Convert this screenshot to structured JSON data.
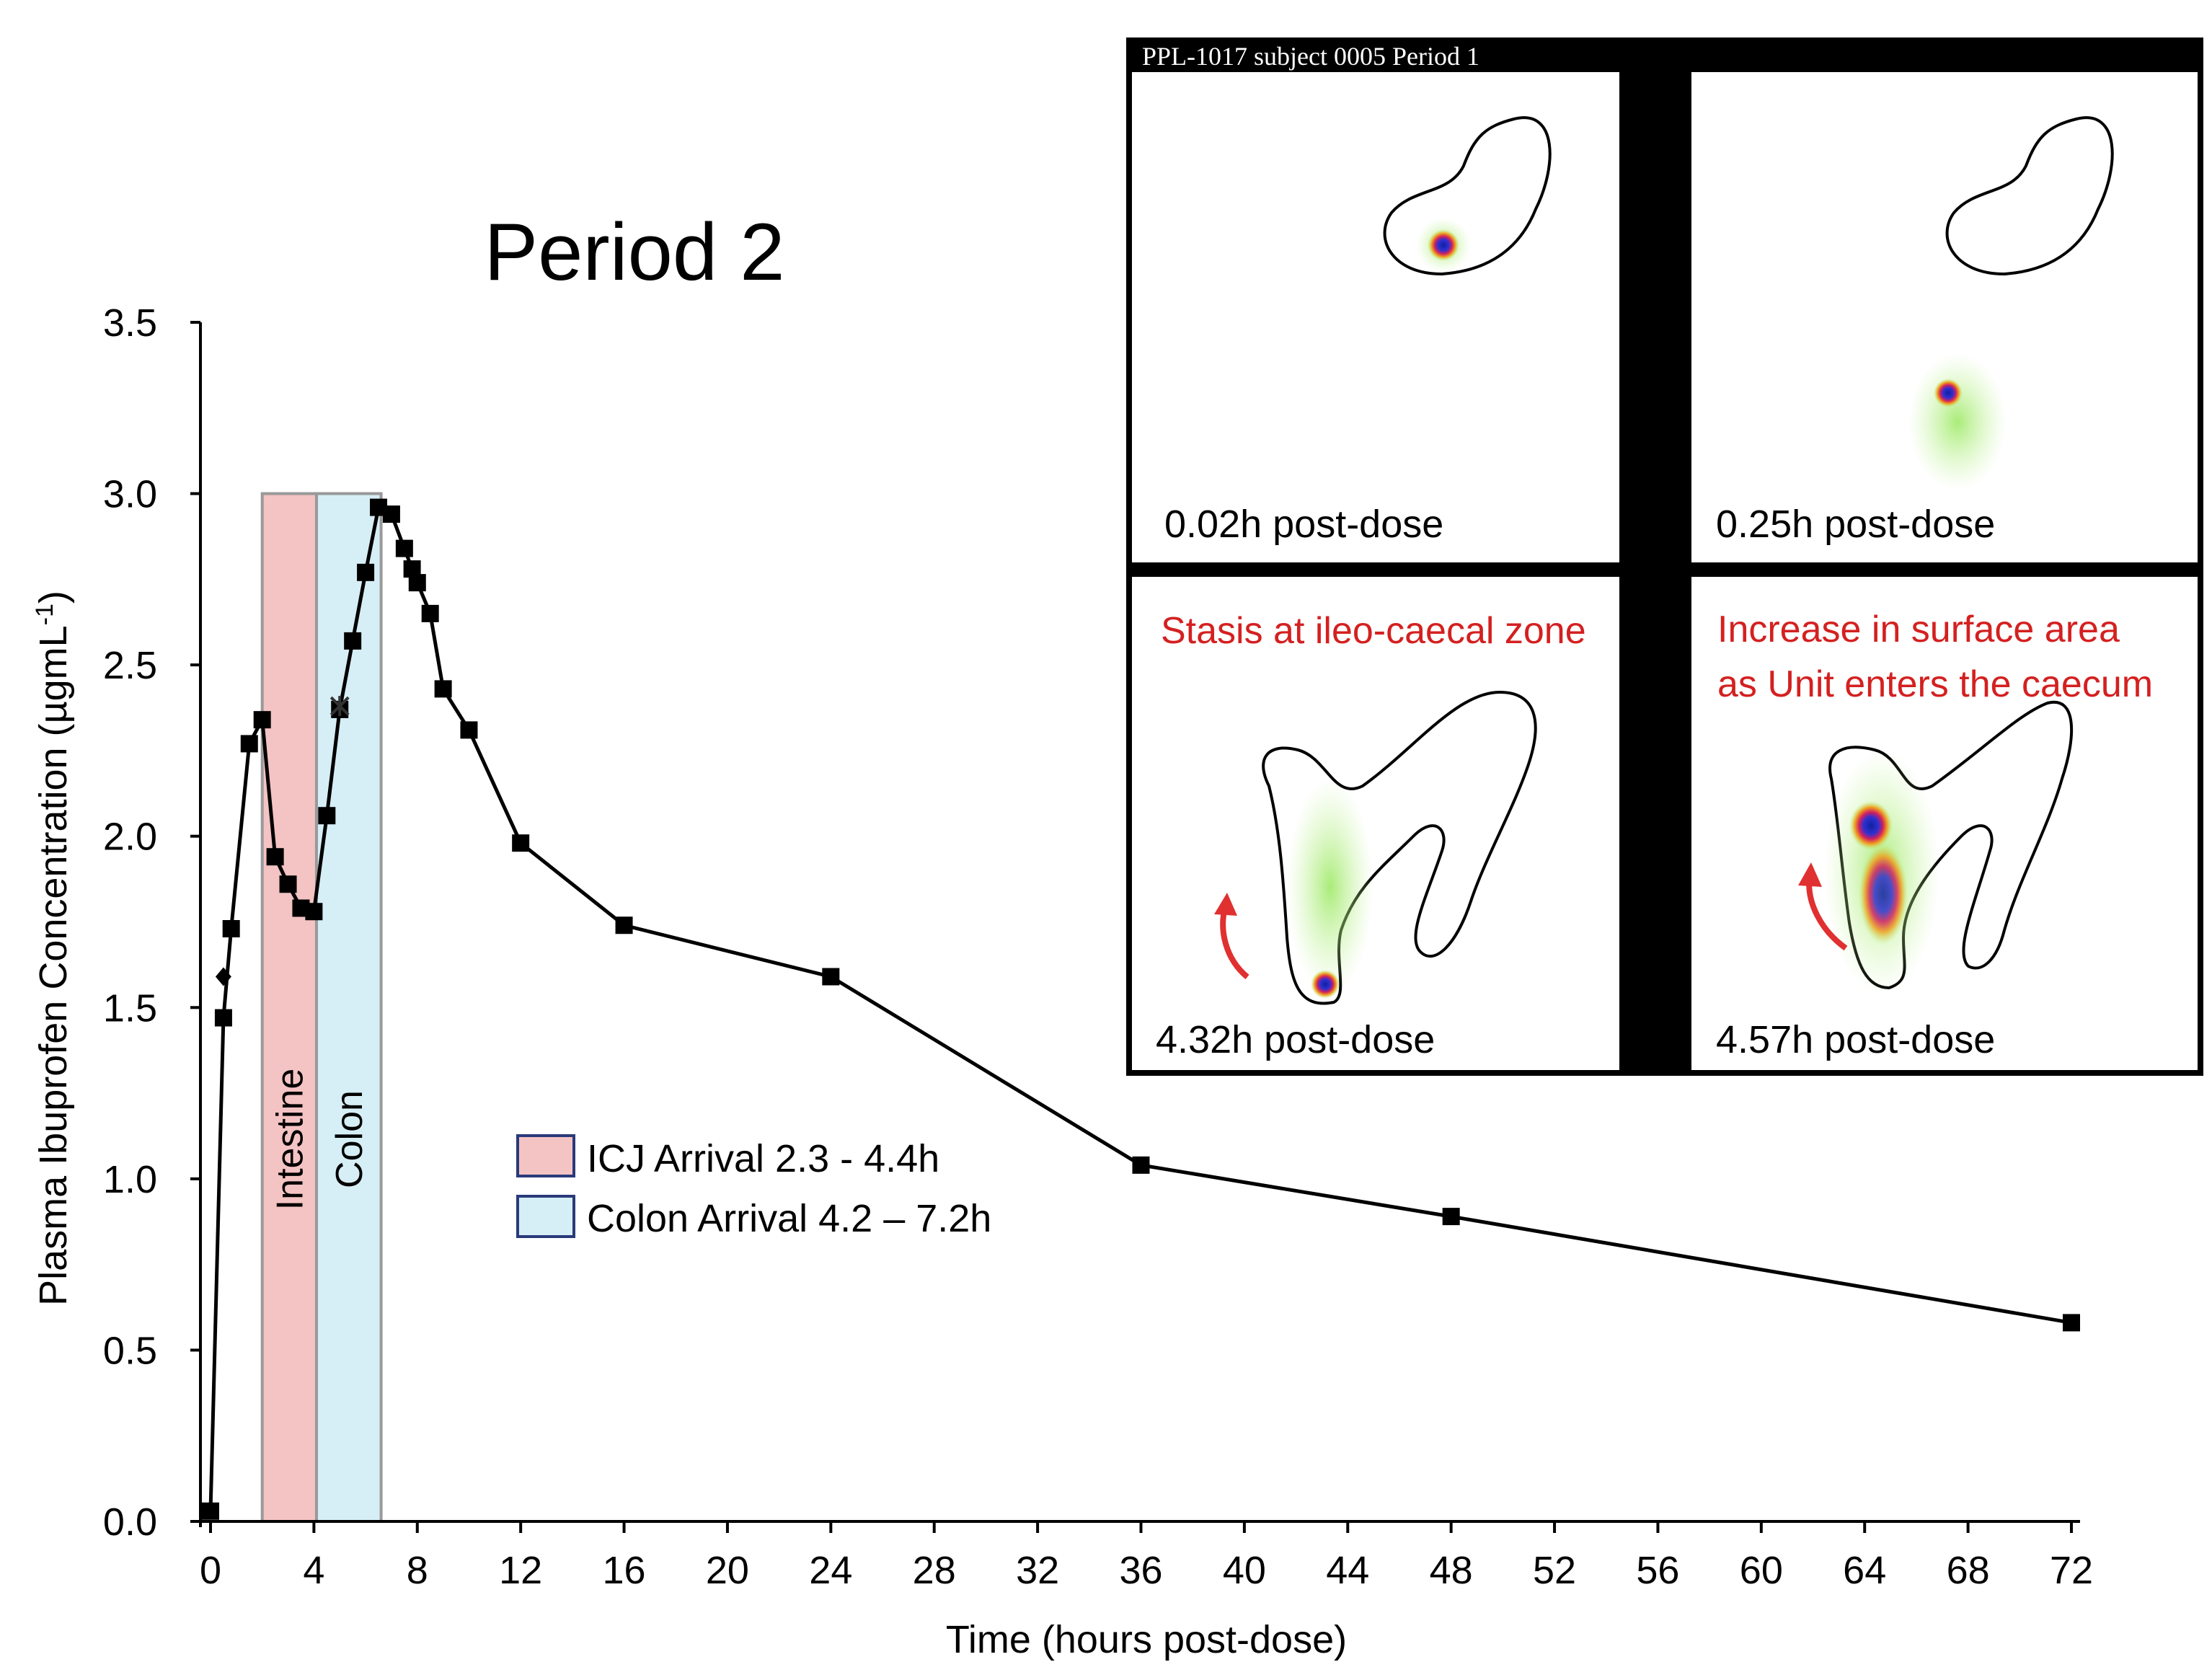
{
  "chart_data": {
    "type": "line",
    "title": "Period 2",
    "xlabel": "Time (hours post-dose)",
    "ylabel_main": "Plasma Ibuprofen Concentration (µgmL",
    "ylabel_sup": "-1",
    "ylabel_close": ")",
    "xlim": [
      -0.5,
      72.5
    ],
    "ylim": [
      0,
      3.5
    ],
    "x_ticks": [
      0,
      4,
      8,
      12,
      16,
      20,
      24,
      28,
      32,
      36,
      40,
      44,
      48,
      52,
      56,
      60,
      64,
      68,
      72
    ],
    "x_tick_labels": [
      "0",
      "4",
      "8",
      "12",
      "16",
      "20",
      "24",
      "28",
      "32",
      "36",
      "40",
      "44",
      "48",
      "52",
      "56",
      "60",
      "64",
      "68",
      "72"
    ],
    "y_ticks": [
      0,
      0.5,
      1.0,
      1.5,
      2.0,
      2.5,
      3.0,
      3.5
    ],
    "y_tick_labels": [
      "0.0",
      "0.5",
      "1.0",
      "1.5",
      "2.0",
      "2.5",
      "3.0",
      "3.5"
    ],
    "series": [
      {
        "name": "Plasma ibuprofen concentration",
        "color": "#000000",
        "marker": "square",
        "x": [
          0,
          0.5,
          0.8,
          1.5,
          2.0,
          2.5,
          3.0,
          3.5,
          4.0,
          4.5,
          5.0,
          5.5,
          6.0,
          6.5,
          7.0,
          7.5,
          7.8,
          8.0,
          8.5,
          9.0,
          10.0,
          12.0,
          16.0,
          24.0,
          36.0,
          48.0,
          72.0
        ],
        "y": [
          0.03,
          1.47,
          1.73,
          2.27,
          2.34,
          1.94,
          1.86,
          1.79,
          1.78,
          2.06,
          2.37,
          2.57,
          2.77,
          2.96,
          2.94,
          2.84,
          2.78,
          2.74,
          2.65,
          2.43,
          2.31,
          1.98,
          1.74,
          1.59,
          1.04,
          0.89,
          0.58
        ]
      }
    ],
    "extra_markers": [
      {
        "symbol": "diamond",
        "x": 0.5,
        "y": 1.59
      },
      {
        "symbol": "star",
        "x": 5.0,
        "y": 2.38
      }
    ],
    "bands": [
      {
        "label": "Intestine",
        "x_start": 2.0,
        "x_end": 4.1,
        "y_top": 3.0,
        "color": "#f4c3c3"
      },
      {
        "label": "Colon",
        "x_start": 4.1,
        "x_end": 6.6,
        "y_top": 3.0,
        "color": "#d6eef5"
      }
    ],
    "legend": {
      "position": "center",
      "entries": [
        {
          "label": "ICJ Arrival 2.3 - 4.4h",
          "color": "#f4c3c3"
        },
        {
          "label": "Colon Arrival 4.2 – 7.2h",
          "color": "#d6eef5"
        }
      ]
    }
  },
  "inset": {
    "header": "PPL-1017 subject 0005 Period 1",
    "panels": [
      {
        "caption": "0.02h post-dose",
        "annotation": ""
      },
      {
        "caption": "0.25h post-dose",
        "annotation": ""
      },
      {
        "caption": "4.32h post-dose",
        "annotation": "Stasis at ileo-caecal zone"
      },
      {
        "caption": "4.57h post-dose",
        "annotation_line1": "Increase in surface area",
        "annotation_line2": "as Unit enters the caecum"
      }
    ],
    "annotation_color": "#d42020",
    "arrow_color": "#e03030"
  }
}
